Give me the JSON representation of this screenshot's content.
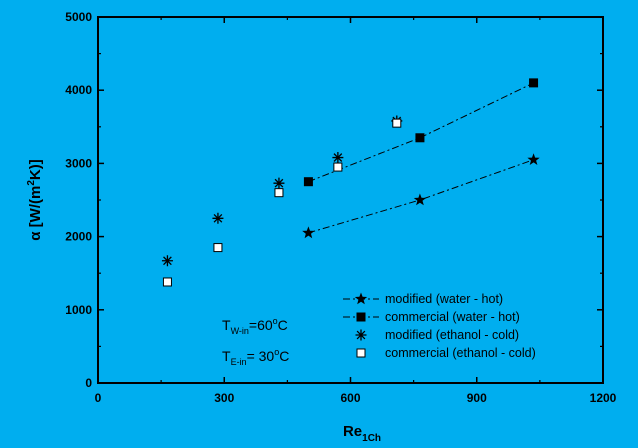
{
  "chart_data": {
    "type": "scatter",
    "xlim": [
      0,
      1200
    ],
    "ylim": [
      0,
      5000
    ],
    "xticks": [
      0,
      300,
      600,
      900,
      1200
    ],
    "yticks": [
      0,
      1000,
      2000,
      3000,
      4000,
      5000
    ],
    "xlabel": {
      "main": "Re",
      "sub": "1Ch"
    },
    "ylabel": {
      "main": "α [W/(m",
      "sup": "2",
      "rest": "K)]"
    },
    "legend_position": "bottom-right",
    "grid": false,
    "annotations": [
      {
        "main": "T",
        "sub": "W-in",
        "value": "=60",
        "sup": "o",
        "unit": "C"
      },
      {
        "main": "T",
        "sub": "E-in",
        "value": "= 30",
        "sup": "o",
        "unit": "C"
      }
    ],
    "series": [
      {
        "name": "modified (water - hot)",
        "marker": "star",
        "line": "dash-dot",
        "x": [
          500,
          765,
          1035
        ],
        "y": [
          2050,
          2500,
          3050
        ]
      },
      {
        "name": "commercial (water - hot)",
        "marker": "filled-square",
        "line": "dash-dot",
        "x": [
          500,
          765,
          1035
        ],
        "y": [
          2750,
          3350,
          4100
        ]
      },
      {
        "name": "modified (ethanol - cold)",
        "marker": "asterisk",
        "line": "none",
        "x": [
          165,
          285,
          430,
          570,
          710
        ],
        "y": [
          1670,
          2250,
          2730,
          3080,
          3580
        ]
      },
      {
        "name": "commercial (ethanol - cold)",
        "marker": "open-square",
        "line": "none",
        "x": [
          165,
          285,
          430,
          570,
          710
        ],
        "y": [
          1380,
          1850,
          2600,
          2950,
          3550
        ]
      }
    ]
  }
}
